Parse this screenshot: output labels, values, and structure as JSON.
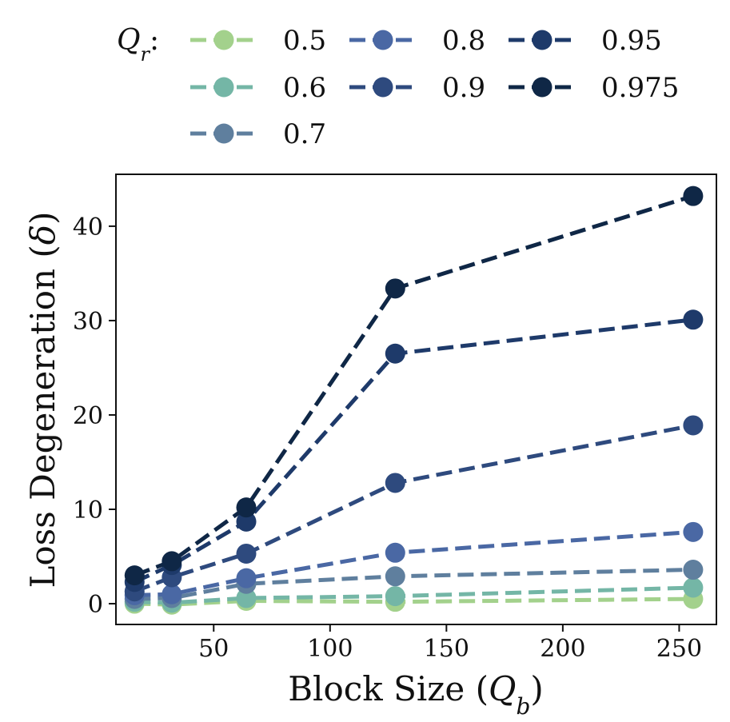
{
  "chart_data": {
    "type": "line",
    "title": "",
    "xlabel": "Block Size",
    "xlabel_symbol": "Q",
    "xlabel_subscript": "b",
    "ylabel": "Loss Degeneration",
    "ylabel_symbol": "δ",
    "xlim": [
      8,
      266
    ],
    "ylim": [
      -2.2,
      45.5
    ],
    "x_ticks": [
      50,
      100,
      150,
      200,
      250
    ],
    "y_ticks": [
      0,
      10,
      20,
      30,
      40
    ],
    "x": [
      16,
      32,
      64,
      128,
      256
    ],
    "legend": {
      "title_symbol": "Q",
      "title_subscript": "r",
      "title_suffix": ":",
      "placement": "top (above plot)"
    },
    "series": [
      {
        "name": "0.5",
        "color": "#a3d18c",
        "values": [
          0.0,
          -0.1,
          0.3,
          0.2,
          0.5
        ]
      },
      {
        "name": "0.6",
        "color": "#74b6a6",
        "values": [
          0.2,
          0.1,
          0.6,
          0.8,
          1.7
        ]
      },
      {
        "name": "0.7",
        "color": "#5f7f9e",
        "values": [
          0.5,
          0.6,
          2.1,
          2.9,
          3.6
        ]
      },
      {
        "name": "0.8",
        "color": "#4a68a4",
        "values": [
          0.9,
          1.0,
          2.7,
          5.4,
          7.6
        ]
      },
      {
        "name": "0.9",
        "color": "#2e4a7e",
        "values": [
          1.3,
          2.8,
          5.3,
          12.8,
          18.9
        ]
      },
      {
        "name": "0.95",
        "color": "#1e3a6a",
        "values": [
          2.3,
          4.1,
          8.7,
          26.5,
          30.1
        ]
      },
      {
        "name": "0.975",
        "color": "#0f2746",
        "values": [
          3.0,
          4.5,
          10.2,
          33.4,
          43.2
        ]
      }
    ]
  }
}
